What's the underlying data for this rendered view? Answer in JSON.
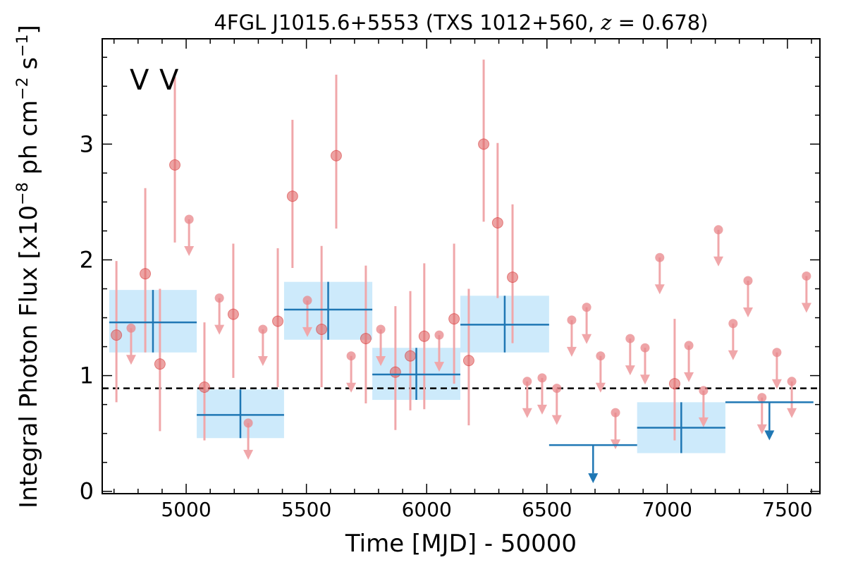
{
  "chart_data": {
    "type": "scatter",
    "title": "4FGL J1015.6+5553 (TXS 1012+560, ",
    "title_math_var": "z",
    "title_math_rest": " = 0.678)",
    "xlabel": "Time [MJD] - 50000",
    "ylabel": "Integral Photon Flux [x10",
    "ylabel_exp1": "−8",
    "ylabel_mid": " ph cm",
    "ylabel_exp2": "−2",
    "ylabel_mid2": " s",
    "ylabel_exp3": "−1",
    "ylabel_end": "]",
    "xlim": [
      4651,
      7635
    ],
    "ylim": [
      -0.02,
      3.91
    ],
    "xticks": [
      5000,
      5500,
      6000,
      6500,
      7000,
      7500
    ],
    "xtick_labels": [
      "5000",
      "5500",
      "6000",
      "6500",
      "7000",
      "7500"
    ],
    "yticks": [
      0,
      1,
      2,
      3
    ],
    "ytick_labels": [
      "0",
      "1",
      "2",
      "3"
    ],
    "x_minor_step": 100,
    "y_minor_step": 0.25,
    "legend": {
      "position": "top-left",
      "entries": [
        {
          "label": "V",
          "color": "#1f77b4"
        },
        {
          "label": "V",
          "color": "#d62728"
        }
      ]
    },
    "mean_flux_line": 0.89,
    "colors": {
      "fine": "#e8858a",
      "fine_err": "#f0a7aa",
      "bin": "#1f77b4",
      "bin_band": "#cdeafb"
    },
    "fine_bins": {
      "detections": [
        {
          "x": 4710,
          "y": 1.35,
          "lo": 0.77,
          "hi": 1.99
        },
        {
          "x": 4830,
          "y": 1.88,
          "lo": 1.2,
          "hi": 2.62
        },
        {
          "x": 4891,
          "y": 1.1,
          "lo": 0.52,
          "hi": 1.75
        },
        {
          "x": 4953,
          "y": 2.82,
          "lo": 2.15,
          "hi": 3.58
        },
        {
          "x": 5076,
          "y": 0.9,
          "lo": 0.44,
          "hi": 1.46
        },
        {
          "x": 5196,
          "y": 1.53,
          "lo": 0.98,
          "hi": 2.14
        },
        {
          "x": 5381,
          "y": 1.47,
          "lo": 0.9,
          "hi": 2.1
        },
        {
          "x": 5442,
          "y": 2.55,
          "lo": 1.93,
          "hi": 3.21
        },
        {
          "x": 5563,
          "y": 1.4,
          "lo": 0.9,
          "hi": 2.12
        },
        {
          "x": 5624,
          "y": 2.9,
          "lo": 2.27,
          "hi": 3.6
        },
        {
          "x": 5747,
          "y": 1.32,
          "lo": 0.76,
          "hi": 1.95
        },
        {
          "x": 5870,
          "y": 1.03,
          "lo": 0.53,
          "hi": 1.6
        },
        {
          "x": 5932,
          "y": 1.17,
          "lo": 0.7,
          "hi": 1.73
        },
        {
          "x": 5990,
          "y": 1.34,
          "lo": 0.71,
          "hi": 1.97
        },
        {
          "x": 6114,
          "y": 1.49,
          "lo": 0.93,
          "hi": 2.14
        },
        {
          "x": 6175,
          "y": 1.13,
          "lo": 0.57,
          "hi": 1.75
        },
        {
          "x": 6237,
          "y": 3.0,
          "lo": 2.33,
          "hi": 3.73
        },
        {
          "x": 6295,
          "y": 2.32,
          "lo": 1.67,
          "hi": 3.01
        },
        {
          "x": 6357,
          "y": 1.85,
          "lo": 1.28,
          "hi": 2.48
        },
        {
          "x": 7031,
          "y": 0.93,
          "lo": 0.44,
          "hi": 1.49
        }
      ],
      "upper_limits": [
        {
          "x": 4771,
          "y": 1.41
        },
        {
          "x": 5012,
          "y": 2.35
        },
        {
          "x": 5138,
          "y": 1.67
        },
        {
          "x": 5258,
          "y": 0.59
        },
        {
          "x": 5319,
          "y": 1.4
        },
        {
          "x": 5504,
          "y": 1.65
        },
        {
          "x": 5686,
          "y": 1.17
        },
        {
          "x": 5809,
          "y": 1.4
        },
        {
          "x": 6052,
          "y": 1.35
        },
        {
          "x": 6418,
          "y": 0.95
        },
        {
          "x": 6480,
          "y": 0.98
        },
        {
          "x": 6541,
          "y": 0.89
        },
        {
          "x": 6603,
          "y": 1.48
        },
        {
          "x": 6665,
          "y": 1.59
        },
        {
          "x": 6723,
          "y": 1.17
        },
        {
          "x": 6785,
          "y": 0.68
        },
        {
          "x": 6846,
          "y": 1.32
        },
        {
          "x": 6908,
          "y": 1.24
        },
        {
          "x": 6969,
          "y": 2.02
        },
        {
          "x": 7090,
          "y": 1.26
        },
        {
          "x": 7151,
          "y": 0.87
        },
        {
          "x": 7213,
          "y": 2.26
        },
        {
          "x": 7274,
          "y": 1.45
        },
        {
          "x": 7336,
          "y": 1.82
        },
        {
          "x": 7394,
          "y": 0.81
        },
        {
          "x": 7456,
          "y": 1.2
        },
        {
          "x": 7518,
          "y": 0.95
        },
        {
          "x": 7579,
          "y": 1.86
        }
      ]
    },
    "coarse_bins": [
      {
        "x0": 4680,
        "x1": 5044,
        "y": 1.46,
        "lo": 1.2,
        "hi": 1.74,
        "ul": false
      },
      {
        "x0": 5044,
        "x1": 5407,
        "y": 0.66,
        "lo": 0.46,
        "hi": 0.88,
        "ul": false
      },
      {
        "x0": 5407,
        "x1": 5774,
        "y": 1.57,
        "lo": 1.31,
        "hi": 1.81,
        "ul": false
      },
      {
        "x0": 5774,
        "x1": 6140,
        "y": 1.01,
        "lo": 0.79,
        "hi": 1.24,
        "ul": false
      },
      {
        "x0": 6140,
        "x1": 6509,
        "y": 1.44,
        "lo": 1.2,
        "hi": 1.69,
        "ul": false
      },
      {
        "x0": 6509,
        "x1": 6875,
        "y": 0.4,
        "ul": true
      },
      {
        "x0": 6875,
        "x1": 7242,
        "y": 0.55,
        "lo": 0.33,
        "hi": 0.77,
        "ul": false
      },
      {
        "x0": 7242,
        "x1": 7608,
        "y": 0.77,
        "ul": true
      }
    ]
  }
}
